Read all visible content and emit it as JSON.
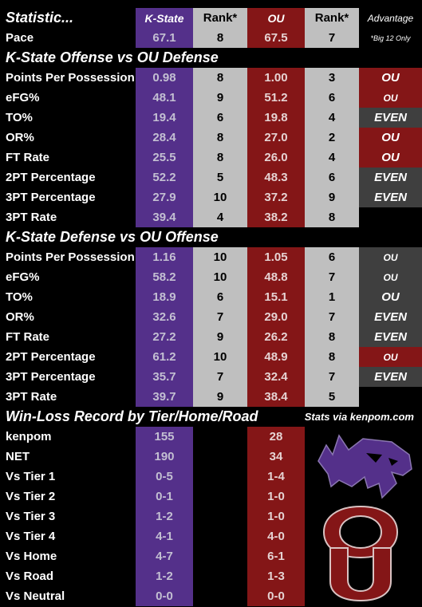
{
  "header": {
    "stat": "Statistic...",
    "ks": "K-State",
    "ks_rank": "Rank*",
    "ou": "OU",
    "ou_rank": "Rank*",
    "adv": "Advantage"
  },
  "pace": {
    "label": "Pace",
    "ks": "67.1",
    "ks_rank": "8",
    "ou": "67.5",
    "ou_rank": "7",
    "note": "*Big 12 Only"
  },
  "section1": {
    "title": "K-State Offense vs OU Defense"
  },
  "offense": [
    {
      "label": "Points Per Possession",
      "ks": "0.98",
      "ks_rank": "8",
      "ou": "1.00",
      "ou_rank": "3",
      "adv": "OU",
      "adv_type": "ou",
      "adv_size": "lg"
    },
    {
      "label": "eFG%",
      "ks": "48.1",
      "ks_rank": "9",
      "ou": "51.2",
      "ou_rank": "6",
      "adv": "OU",
      "adv_type": "ou",
      "adv_size": "sm"
    },
    {
      "label": "TO%",
      "ks": "19.4",
      "ks_rank": "6",
      "ou": "19.8",
      "ou_rank": "4",
      "adv": "EVEN",
      "adv_type": "even",
      "adv_size": "lg"
    },
    {
      "label": "OR%",
      "ks": "28.4",
      "ks_rank": "8",
      "ou": "27.0",
      "ou_rank": "2",
      "adv": "OU",
      "adv_type": "ou",
      "adv_size": "lg"
    },
    {
      "label": "FT Rate",
      "ks": "25.5",
      "ks_rank": "8",
      "ou": "26.0",
      "ou_rank": "4",
      "adv": "OU",
      "adv_type": "ou",
      "adv_size": "lg"
    },
    {
      "label": "2PT Percentage",
      "ks": "52.2",
      "ks_rank": "5",
      "ou": "48.3",
      "ou_rank": "6",
      "adv": "EVEN",
      "adv_type": "even",
      "adv_size": "lg"
    },
    {
      "label": "3PT Percentage",
      "ks": "27.9",
      "ks_rank": "10",
      "ou": "37.2",
      "ou_rank": "9",
      "adv": "EVEN",
      "adv_type": "even",
      "adv_size": "lg"
    },
    {
      "label": "3PT Rate",
      "ks": "39.4",
      "ks_rank": "4",
      "ou": "38.2",
      "ou_rank": "8",
      "adv": "",
      "adv_type": "none",
      "adv_size": "lg"
    }
  ],
  "section2": {
    "title": "K-State Defense vs OU Offense"
  },
  "defense": [
    {
      "label": "Points Per Possession",
      "ks": "1.16",
      "ks_rank": "10",
      "ou": "1.05",
      "ou_rank": "6",
      "adv": "OU",
      "adv_type": "even",
      "adv_size": "sm"
    },
    {
      "label": "eFG%",
      "ks": "58.2",
      "ks_rank": "10",
      "ou": "48.8",
      "ou_rank": "7",
      "adv": "OU",
      "adv_type": "even",
      "adv_size": "sm"
    },
    {
      "label": "TO%",
      "ks": "18.9",
      "ks_rank": "6",
      "ou": "15.1",
      "ou_rank": "1",
      "adv": "OU",
      "adv_type": "even",
      "adv_size": "lg"
    },
    {
      "label": "OR%",
      "ks": "32.6",
      "ks_rank": "7",
      "ou": "29.0",
      "ou_rank": "7",
      "adv": "EVEN",
      "adv_type": "even",
      "adv_size": "lg"
    },
    {
      "label": "FT Rate",
      "ks": "27.2",
      "ks_rank": "9",
      "ou": "26.2",
      "ou_rank": "8",
      "adv": "EVEN",
      "adv_type": "even",
      "adv_size": "lg"
    },
    {
      "label": "2PT Percentage",
      "ks": "61.2",
      "ks_rank": "10",
      "ou": "48.9",
      "ou_rank": "8",
      "adv": "OU",
      "adv_type": "ou",
      "adv_size": "sm"
    },
    {
      "label": "3PT Percentage",
      "ks": "35.7",
      "ks_rank": "7",
      "ou": "32.4",
      "ou_rank": "7",
      "adv": "EVEN",
      "adv_type": "even",
      "adv_size": "lg"
    },
    {
      "label": "3PT Rate",
      "ks": "39.7",
      "ks_rank": "9",
      "ou": "38.4",
      "ou_rank": "5",
      "adv": "",
      "adv_type": "none",
      "adv_size": "lg"
    }
  ],
  "section3": {
    "title": "Win-Loss Record by Tier/Home/Road",
    "credit": "Stats via kenpom.com"
  },
  "records": [
    {
      "label": "kenpom",
      "ks": "155",
      "ou": "28"
    },
    {
      "label": "NET",
      "ks": "190",
      "ou": "34"
    },
    {
      "label": "Vs Tier 1",
      "ks": "0-5",
      "ou": "1-4"
    },
    {
      "label": "Vs Tier 2",
      "ks": "0-1",
      "ou": "1-0"
    },
    {
      "label": "Vs Tier 3",
      "ks": "1-2",
      "ou": "1-0"
    },
    {
      "label": "Vs Tier 4",
      "ks": "4-1",
      "ou": "4-0"
    },
    {
      "label": "Vs Home",
      "ks": "4-7",
      "ou": "6-1"
    },
    {
      "label": "Vs Road",
      "ks": "1-2",
      "ou": "1-3"
    },
    {
      "label": "Vs Neutral",
      "ks": "0-0",
      "ou": "0-0"
    }
  ],
  "logos": {
    "ks": "wildcat-logo",
    "ou": "ou-logo"
  },
  "colors": {
    "ks_purple": "#54308a",
    "ou_crimson": "#841617",
    "rank_grey": "#bfbfbf",
    "even_grey": "#3f3f3f"
  }
}
